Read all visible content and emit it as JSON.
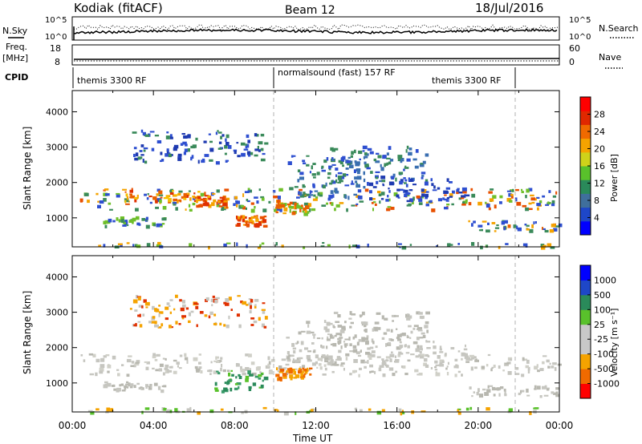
{
  "header": {
    "station": "Kodiak (fitACF)",
    "beam": "Beam 12",
    "date": "18/Jul/2016"
  },
  "top_panels": {
    "nsky_label": "N.Sky",
    "nsky_ticks": [
      "10^5",
      "10^0"
    ],
    "nsearch_label": "N.Search",
    "nsearch_ticks": [
      "10^5",
      "10^0"
    ],
    "freq_label": "Freq.",
    "freq_units": "[MHz]",
    "freq_ticks": [
      "18",
      "8"
    ],
    "nave_label": "Nave",
    "nave_ticks": [
      "60",
      "0"
    ],
    "cpid_label": "CPID",
    "cpid_segments": [
      "themis 3300 RF",
      "normalsound (fast) 157 RF",
      "themis 3300 RF"
    ]
  },
  "chart_data": [
    {
      "type": "heatmap",
      "panel": "power",
      "ylabel": "Slant Range [km]",
      "yticks": [
        1000,
        2000,
        3000,
        4000
      ],
      "ylim": [
        180,
        4600
      ],
      "xlim": [
        0,
        24
      ],
      "colorbar": {
        "label": "Power [dB]",
        "ticks": [
          "28",
          "24",
          "20",
          "16",
          "12",
          "8",
          "4"
        ],
        "colors": [
          "#0000ff",
          "#1e47c8",
          "#3f6f9c",
          "#2a8a5a",
          "#59c12b",
          "#cfd21a",
          "#f5a300",
          "#f06a00",
          "#e02800",
          "#ff0000"
        ]
      },
      "scatter_regions": [
        {
          "t0": 0.3,
          "t1": 24,
          "r0": 1250,
          "r1": 1850,
          "colors": [
            "#2e4fd0",
            "#3a8a5a",
            "#6fbf2a",
            "#f5a300",
            "#e85000"
          ]
        },
        {
          "t0": 2.5,
          "t1": 6.5,
          "r0": 1500,
          "r1": 1800,
          "colors": [
            "#f5a300",
            "#e86000",
            "#e03000",
            "#f5c000"
          ]
        },
        {
          "t0": 6.0,
          "t1": 7.5,
          "r0": 1350,
          "r1": 1650,
          "colors": [
            "#e85000",
            "#e03000",
            "#f5a300"
          ]
        },
        {
          "t0": 1.5,
          "t1": 4.5,
          "r0": 800,
          "r1": 1050,
          "colors": [
            "#2e4fd0",
            "#3a8a5a",
            "#6fbf2a"
          ]
        },
        {
          "t0": 2.8,
          "t1": 9.5,
          "r0": 2600,
          "r1": 3500,
          "colors": [
            "#2e4fd0",
            "#1e3ab0",
            "#3a8a5a"
          ]
        },
        {
          "t0": 8.0,
          "t1": 9.5,
          "r0": 800,
          "r1": 1100,
          "colors": [
            "#e85000",
            "#e03000",
            "#f5a300"
          ]
        },
        {
          "t0": 10.0,
          "t1": 11.5,
          "r0": 1150,
          "r1": 1450,
          "colors": [
            "#f5a300",
            "#e86000",
            "#6fbf2a"
          ]
        },
        {
          "t0": 10.5,
          "t1": 14.5,
          "r0": 1600,
          "r1": 2800,
          "colors": [
            "#2e4fd0",
            "#3a6fb0",
            "#3a8a5a"
          ]
        },
        {
          "t0": 12.5,
          "t1": 17.5,
          "r0": 2000,
          "r1": 3050,
          "colors": [
            "#2e4fd0",
            "#3a6fb0",
            "#3a8a5a"
          ]
        },
        {
          "t0": 14.5,
          "t1": 19.5,
          "r0": 1500,
          "r1": 2200,
          "colors": [
            "#2e4fd0",
            "#1e3ab0"
          ]
        },
        {
          "t0": 19.5,
          "t1": 24,
          "r0": 650,
          "r1": 950,
          "colors": [
            "#f5a300",
            "#e86000",
            "#3a8a5a",
            "#2e4fd0"
          ]
        },
        {
          "t0": 0.0,
          "t1": 24,
          "r0": 190,
          "r1": 320,
          "colors": [
            "#2e4fd0",
            "#3a8a5a",
            "#6fbf2a",
            "#f5a300"
          ]
        }
      ]
    },
    {
      "type": "heatmap",
      "panel": "velocity",
      "ylabel": "Slant Range [km]",
      "xlabel": "Time UT",
      "yticks": [
        1000,
        2000,
        3000,
        4000
      ],
      "ylim": [
        180,
        4600
      ],
      "xlim": [
        0,
        24
      ],
      "xticks": [
        "00:00",
        "04:00",
        "08:00",
        "12:00",
        "16:00",
        "20:00",
        "00:00"
      ],
      "colorbar": {
        "label": "Velocity [m s⁻¹]",
        "ticks": [
          "1000",
          "500",
          "100",
          "25",
          "-25",
          "-100",
          "-500",
          "-1000"
        ],
        "colors": [
          "#ff0000",
          "#f06a00",
          "#f5a300",
          "#c8c8c8",
          "#c8c8c8",
          "#59c12b",
          "#2a8a5a",
          "#1e47c8",
          "#0000ff"
        ]
      },
      "scatter_regions": [
        {
          "t0": 0.3,
          "t1": 24,
          "r0": 1250,
          "r1": 1850,
          "colors": [
            "#c6c6c0",
            "#c6c6c0",
            "#b8b8b0",
            "#d0d0c8"
          ]
        },
        {
          "t0": 1.5,
          "t1": 4.5,
          "r0": 800,
          "r1": 1050,
          "colors": [
            "#c6c6c0",
            "#b8b8b0"
          ]
        },
        {
          "t0": 2.8,
          "t1": 9.5,
          "r0": 2600,
          "r1": 3500,
          "colors": [
            "#c6c6c0",
            "#f5a300",
            "#e03000"
          ]
        },
        {
          "t0": 7.0,
          "t1": 9.5,
          "r0": 800,
          "r1": 1400,
          "colors": [
            "#2a8a5a",
            "#3a9a6a",
            "#59c12b"
          ]
        },
        {
          "t0": 10.0,
          "t1": 11.8,
          "r0": 1150,
          "r1": 1450,
          "colors": [
            "#f06a00",
            "#e86000",
            "#f5a300"
          ]
        },
        {
          "t0": 10.5,
          "t1": 14.5,
          "r0": 1600,
          "r1": 2800,
          "colors": [
            "#c6c6c0",
            "#b8b8b0"
          ]
        },
        {
          "t0": 12.5,
          "t1": 17.5,
          "r0": 2000,
          "r1": 3050,
          "colors": [
            "#c6c6c0",
            "#b8b8b0"
          ]
        },
        {
          "t0": 14.5,
          "t1": 19.5,
          "r0": 1500,
          "r1": 2200,
          "colors": [
            "#c6c6c0"
          ]
        },
        {
          "t0": 19.5,
          "t1": 24,
          "r0": 650,
          "r1": 950,
          "colors": [
            "#c6c6c0",
            "#b8b8b0"
          ]
        },
        {
          "t0": 0.0,
          "t1": 24,
          "r0": 190,
          "r1": 320,
          "colors": [
            "#c6c6c0",
            "#f5a300",
            "#59c12b"
          ]
        }
      ]
    }
  ]
}
